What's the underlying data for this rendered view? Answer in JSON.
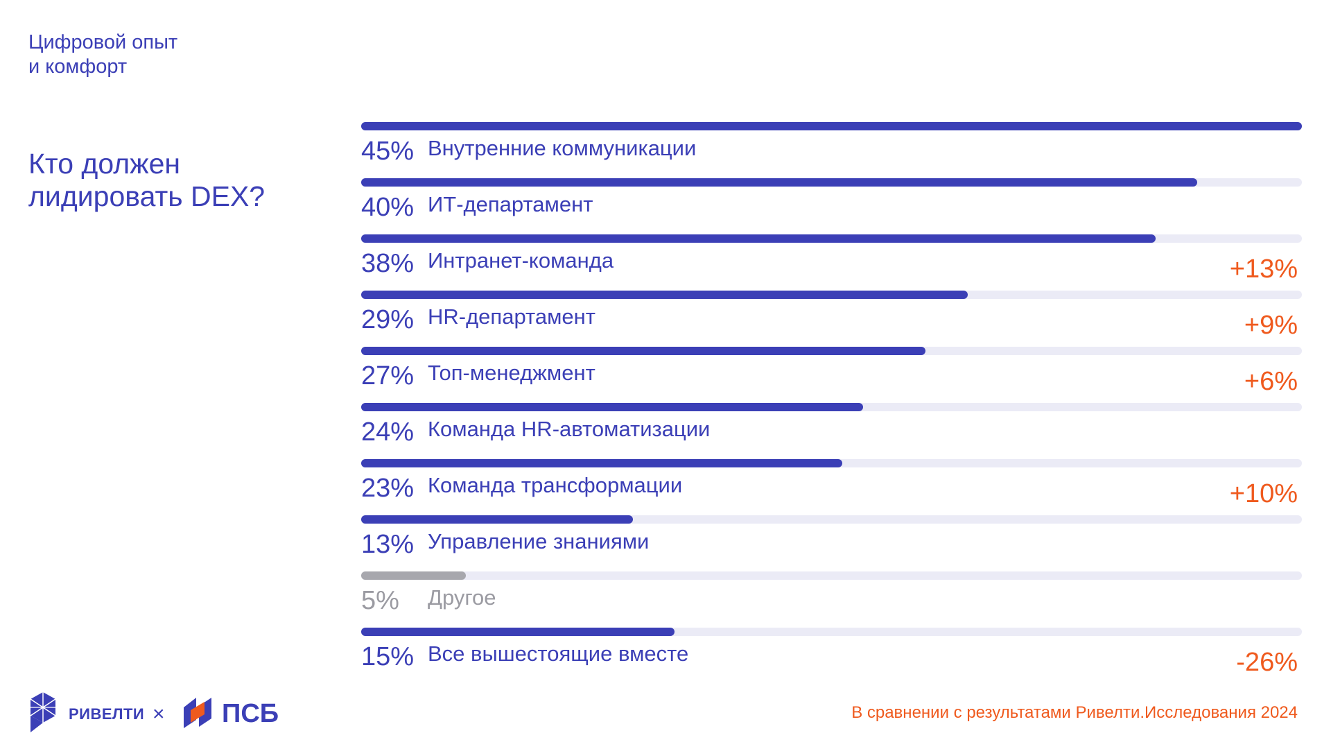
{
  "section": {
    "line1": "Цифровой опыт",
    "line2": "и комфорт"
  },
  "question": {
    "line1": "Кто должен",
    "line2": "лидировать DEX?"
  },
  "colors": {
    "primary": "#3b3fb6",
    "track": "#ebebf6",
    "muted": "#a7a7ad",
    "accent": "#ef5a1e"
  },
  "chart_data": {
    "type": "bar",
    "orientation": "horizontal",
    "title": "Кто должен лидировать DEX?",
    "xlim": [
      0,
      45
    ],
    "categories": [
      "Внутренние коммуникации",
      "ИТ-департамент",
      "Интранет-команда",
      "HR-департамент",
      "Топ-менеджмент",
      "Команда HR-автоматизации",
      "Команда трансформации",
      "Управление знаниями",
      "Другое",
      "Все вышестоящие вместе"
    ],
    "values": [
      45,
      40,
      38,
      29,
      27,
      24,
      23,
      13,
      5,
      15
    ],
    "value_labels": [
      "45%",
      "40%",
      "38%",
      "29%",
      "27%",
      "24%",
      "23%",
      "13%",
      "5%",
      "15%"
    ],
    "change_labels": [
      "",
      "",
      "+13%",
      "+9%",
      "+6%",
      "",
      "+10%",
      "",
      "",
      "-26%"
    ],
    "muted": [
      false,
      false,
      false,
      false,
      false,
      false,
      false,
      false,
      true,
      false
    ]
  },
  "footer": {
    "note": "В сравнении с результатами Ривелти.Исследования 2024",
    "logo1_text": "РИВЕЛТИ",
    "separator": "×",
    "logo2_text": "ПСБ"
  }
}
